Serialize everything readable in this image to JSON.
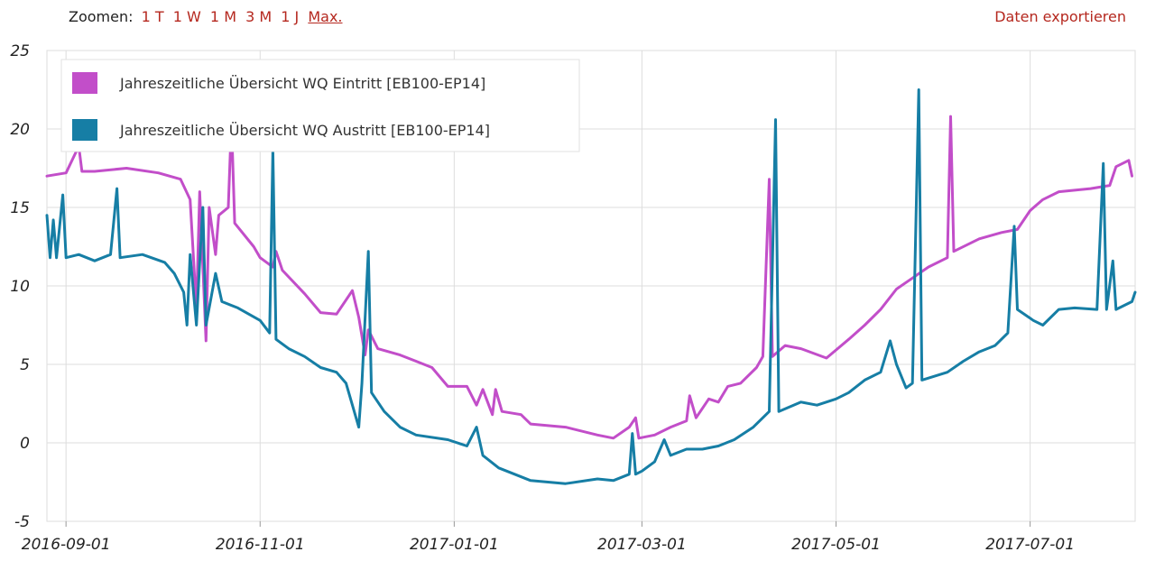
{
  "toolbar": {
    "zoom_label": "Zoomen:",
    "zoom_options": [
      "1 T",
      "1 W",
      "1 M",
      "3 M",
      "1 J",
      "Max."
    ],
    "zoom_active": "Max.",
    "export_label": "Daten exportieren"
  },
  "colors": {
    "eintritt": "#c24ec9",
    "austritt": "#167ea5",
    "grid": "#dddddd",
    "link": "#b5281f"
  },
  "chart_data": {
    "type": "line",
    "x_type": "date",
    "ylim": [
      -5,
      25
    ],
    "yticks": [
      -5,
      0,
      5,
      10,
      15,
      20,
      25
    ],
    "xticks": [
      "2016-09-01",
      "2016-11-01",
      "2017-01-01",
      "2017-03-01",
      "2017-05-01",
      "2017-07-01"
    ],
    "xlim": [
      "2016-08-26",
      "2017-08-03"
    ],
    "grid": true,
    "legend_position": "top-left",
    "series": [
      {
        "name": "Jahreszeitliche Übersicht WQ Eintritt [EB100-EP14]",
        "color": "#c24ec9",
        "points": [
          [
            "2016-08-26",
            17.0
          ],
          [
            "2016-09-01",
            17.2
          ],
          [
            "2016-09-05",
            18.9
          ],
          [
            "2016-09-06",
            17.3
          ],
          [
            "2016-09-10",
            17.3
          ],
          [
            "2016-09-20",
            17.5
          ],
          [
            "2016-09-30",
            17.2
          ],
          [
            "2016-10-07",
            16.8
          ],
          [
            "2016-10-10",
            15.5
          ],
          [
            "2016-10-12",
            8.5
          ],
          [
            "2016-10-13",
            16.0
          ],
          [
            "2016-10-15",
            6.5
          ],
          [
            "2016-10-16",
            15.0
          ],
          [
            "2016-10-18",
            12.0
          ],
          [
            "2016-10-19",
            14.5
          ],
          [
            "2016-10-22",
            15.0
          ],
          [
            "2016-10-23",
            20.5
          ],
          [
            "2016-10-24",
            14.0
          ],
          [
            "2016-10-30",
            12.5
          ],
          [
            "2016-11-01",
            11.8
          ],
          [
            "2016-11-05",
            11.2
          ],
          [
            "2016-11-06",
            12.2
          ],
          [
            "2016-11-08",
            11.0
          ],
          [
            "2016-11-15",
            9.5
          ],
          [
            "2016-11-20",
            8.3
          ],
          [
            "2016-11-25",
            8.2
          ],
          [
            "2016-11-30",
            9.7
          ],
          [
            "2016-12-02",
            8.0
          ],
          [
            "2016-12-04",
            5.6
          ],
          [
            "2016-12-05",
            7.2
          ],
          [
            "2016-12-08",
            6.0
          ],
          [
            "2016-12-15",
            5.6
          ],
          [
            "2016-12-20",
            5.2
          ],
          [
            "2016-12-25",
            4.8
          ],
          [
            "2016-12-30",
            3.6
          ],
          [
            "2017-01-05",
            3.6
          ],
          [
            "2017-01-08",
            2.4
          ],
          [
            "2017-01-10",
            3.4
          ],
          [
            "2017-01-13",
            1.8
          ],
          [
            "2017-01-14",
            3.4
          ],
          [
            "2017-01-16",
            2.0
          ],
          [
            "2017-01-22",
            1.8
          ],
          [
            "2017-01-25",
            1.2
          ],
          [
            "2017-02-05",
            1.0
          ],
          [
            "2017-02-15",
            0.5
          ],
          [
            "2017-02-20",
            0.3
          ],
          [
            "2017-02-25",
            1.0
          ],
          [
            "2017-02-27",
            1.6
          ],
          [
            "2017-02-28",
            0.3
          ],
          [
            "2017-03-05",
            0.5
          ],
          [
            "2017-03-10",
            1.0
          ],
          [
            "2017-03-15",
            1.4
          ],
          [
            "2017-03-16",
            3.0
          ],
          [
            "2017-03-18",
            1.6
          ],
          [
            "2017-03-22",
            2.8
          ],
          [
            "2017-03-25",
            2.6
          ],
          [
            "2017-03-28",
            3.6
          ],
          [
            "2017-04-01",
            3.8
          ],
          [
            "2017-04-06",
            4.8
          ],
          [
            "2017-04-08",
            5.5
          ],
          [
            "2017-04-10",
            16.8
          ],
          [
            "2017-04-11",
            5.5
          ],
          [
            "2017-04-15",
            6.2
          ],
          [
            "2017-04-20",
            6.0
          ],
          [
            "2017-04-28",
            5.4
          ],
          [
            "2017-05-05",
            6.6
          ],
          [
            "2017-05-10",
            7.5
          ],
          [
            "2017-05-15",
            8.5
          ],
          [
            "2017-05-20",
            9.8
          ],
          [
            "2017-05-25",
            10.5
          ],
          [
            "2017-05-30",
            11.2
          ],
          [
            "2017-06-05",
            11.8
          ],
          [
            "2017-06-06",
            20.8
          ],
          [
            "2017-06-07",
            12.2
          ],
          [
            "2017-06-15",
            13.0
          ],
          [
            "2017-06-22",
            13.4
          ],
          [
            "2017-06-27",
            13.6
          ],
          [
            "2017-07-01",
            14.8
          ],
          [
            "2017-07-05",
            15.5
          ],
          [
            "2017-07-10",
            16.0
          ],
          [
            "2017-07-20",
            16.2
          ],
          [
            "2017-07-26",
            16.4
          ],
          [
            "2017-07-28",
            17.6
          ],
          [
            "2017-08-01",
            18.0
          ],
          [
            "2017-08-02",
            17.0
          ]
        ]
      },
      {
        "name": "Jahreszeitliche Übersicht WQ Austritt [EB100-EP14]",
        "color": "#167ea5",
        "points": [
          [
            "2016-08-26",
            14.5
          ],
          [
            "2016-08-27",
            11.8
          ],
          [
            "2016-08-28",
            14.2
          ],
          [
            "2016-08-29",
            11.8
          ],
          [
            "2016-08-31",
            15.8
          ],
          [
            "2016-09-01",
            11.8
          ],
          [
            "2016-09-05",
            12.0
          ],
          [
            "2016-09-10",
            11.6
          ],
          [
            "2016-09-15",
            12.0
          ],
          [
            "2016-09-17",
            16.2
          ],
          [
            "2016-09-18",
            11.8
          ],
          [
            "2016-09-25",
            12.0
          ],
          [
            "2016-10-02",
            11.5
          ],
          [
            "2016-10-05",
            10.8
          ],
          [
            "2016-10-08",
            9.6
          ],
          [
            "2016-10-09",
            7.5
          ],
          [
            "2016-10-10",
            12.0
          ],
          [
            "2016-10-12",
            7.5
          ],
          [
            "2016-10-13",
            11.5
          ],
          [
            "2016-10-14",
            15.0
          ],
          [
            "2016-10-15",
            7.5
          ],
          [
            "2016-10-18",
            10.8
          ],
          [
            "2016-10-20",
            9.0
          ],
          [
            "2016-10-25",
            8.6
          ],
          [
            "2016-11-01",
            7.8
          ],
          [
            "2016-11-04",
            7.0
          ],
          [
            "2016-11-05",
            18.7
          ],
          [
            "2016-11-06",
            6.6
          ],
          [
            "2016-11-10",
            6.0
          ],
          [
            "2016-11-15",
            5.5
          ],
          [
            "2016-11-20",
            4.8
          ],
          [
            "2016-11-25",
            4.5
          ],
          [
            "2016-11-28",
            3.8
          ],
          [
            "2016-12-02",
            1.0
          ],
          [
            "2016-12-03",
            3.8
          ],
          [
            "2016-12-05",
            12.2
          ],
          [
            "2016-12-06",
            3.2
          ],
          [
            "2016-12-10",
            2.0
          ],
          [
            "2016-12-15",
            1.0
          ],
          [
            "2016-12-20",
            0.5
          ],
          [
            "2016-12-30",
            0.2
          ],
          [
            "2017-01-05",
            -0.2
          ],
          [
            "2017-01-08",
            1.0
          ],
          [
            "2017-01-10",
            -0.8
          ],
          [
            "2017-01-15",
            -1.6
          ],
          [
            "2017-01-20",
            -2.0
          ],
          [
            "2017-01-25",
            -2.4
          ],
          [
            "2017-02-05",
            -2.6
          ],
          [
            "2017-02-15",
            -2.3
          ],
          [
            "2017-02-20",
            -2.4
          ],
          [
            "2017-02-25",
            -2.0
          ],
          [
            "2017-02-26",
            0.6
          ],
          [
            "2017-02-27",
            -2.0
          ],
          [
            "2017-03-01",
            -1.8
          ],
          [
            "2017-03-05",
            -1.2
          ],
          [
            "2017-03-08",
            0.2
          ],
          [
            "2017-03-10",
            -0.8
          ],
          [
            "2017-03-15",
            -0.4
          ],
          [
            "2017-03-20",
            -0.4
          ],
          [
            "2017-03-25",
            -0.2
          ],
          [
            "2017-03-30",
            0.2
          ],
          [
            "2017-04-05",
            1.0
          ],
          [
            "2017-04-10",
            2.0
          ],
          [
            "2017-04-12",
            20.6
          ],
          [
            "2017-04-13",
            2.0
          ],
          [
            "2017-04-20",
            2.6
          ],
          [
            "2017-04-25",
            2.4
          ],
          [
            "2017-05-01",
            2.8
          ],
          [
            "2017-05-05",
            3.2
          ],
          [
            "2017-05-10",
            4.0
          ],
          [
            "2017-05-15",
            4.5
          ],
          [
            "2017-05-18",
            6.5
          ],
          [
            "2017-05-20",
            5.0
          ],
          [
            "2017-05-23",
            3.5
          ],
          [
            "2017-05-25",
            3.8
          ],
          [
            "2017-05-27",
            22.5
          ],
          [
            "2017-05-28",
            4.0
          ],
          [
            "2017-06-05",
            4.5
          ],
          [
            "2017-06-10",
            5.2
          ],
          [
            "2017-06-15",
            5.8
          ],
          [
            "2017-06-20",
            6.2
          ],
          [
            "2017-06-24",
            7.0
          ],
          [
            "2017-06-26",
            13.8
          ],
          [
            "2017-06-27",
            8.5
          ],
          [
            "2017-07-02",
            7.8
          ],
          [
            "2017-07-05",
            7.5
          ],
          [
            "2017-07-10",
            8.5
          ],
          [
            "2017-07-15",
            8.6
          ],
          [
            "2017-07-22",
            8.5
          ],
          [
            "2017-07-24",
            17.8
          ],
          [
            "2017-07-25",
            8.5
          ],
          [
            "2017-07-27",
            11.6
          ],
          [
            "2017-07-28",
            8.5
          ],
          [
            "2017-08-02",
            9.0
          ],
          [
            "2017-08-03",
            9.6
          ]
        ]
      }
    ]
  }
}
